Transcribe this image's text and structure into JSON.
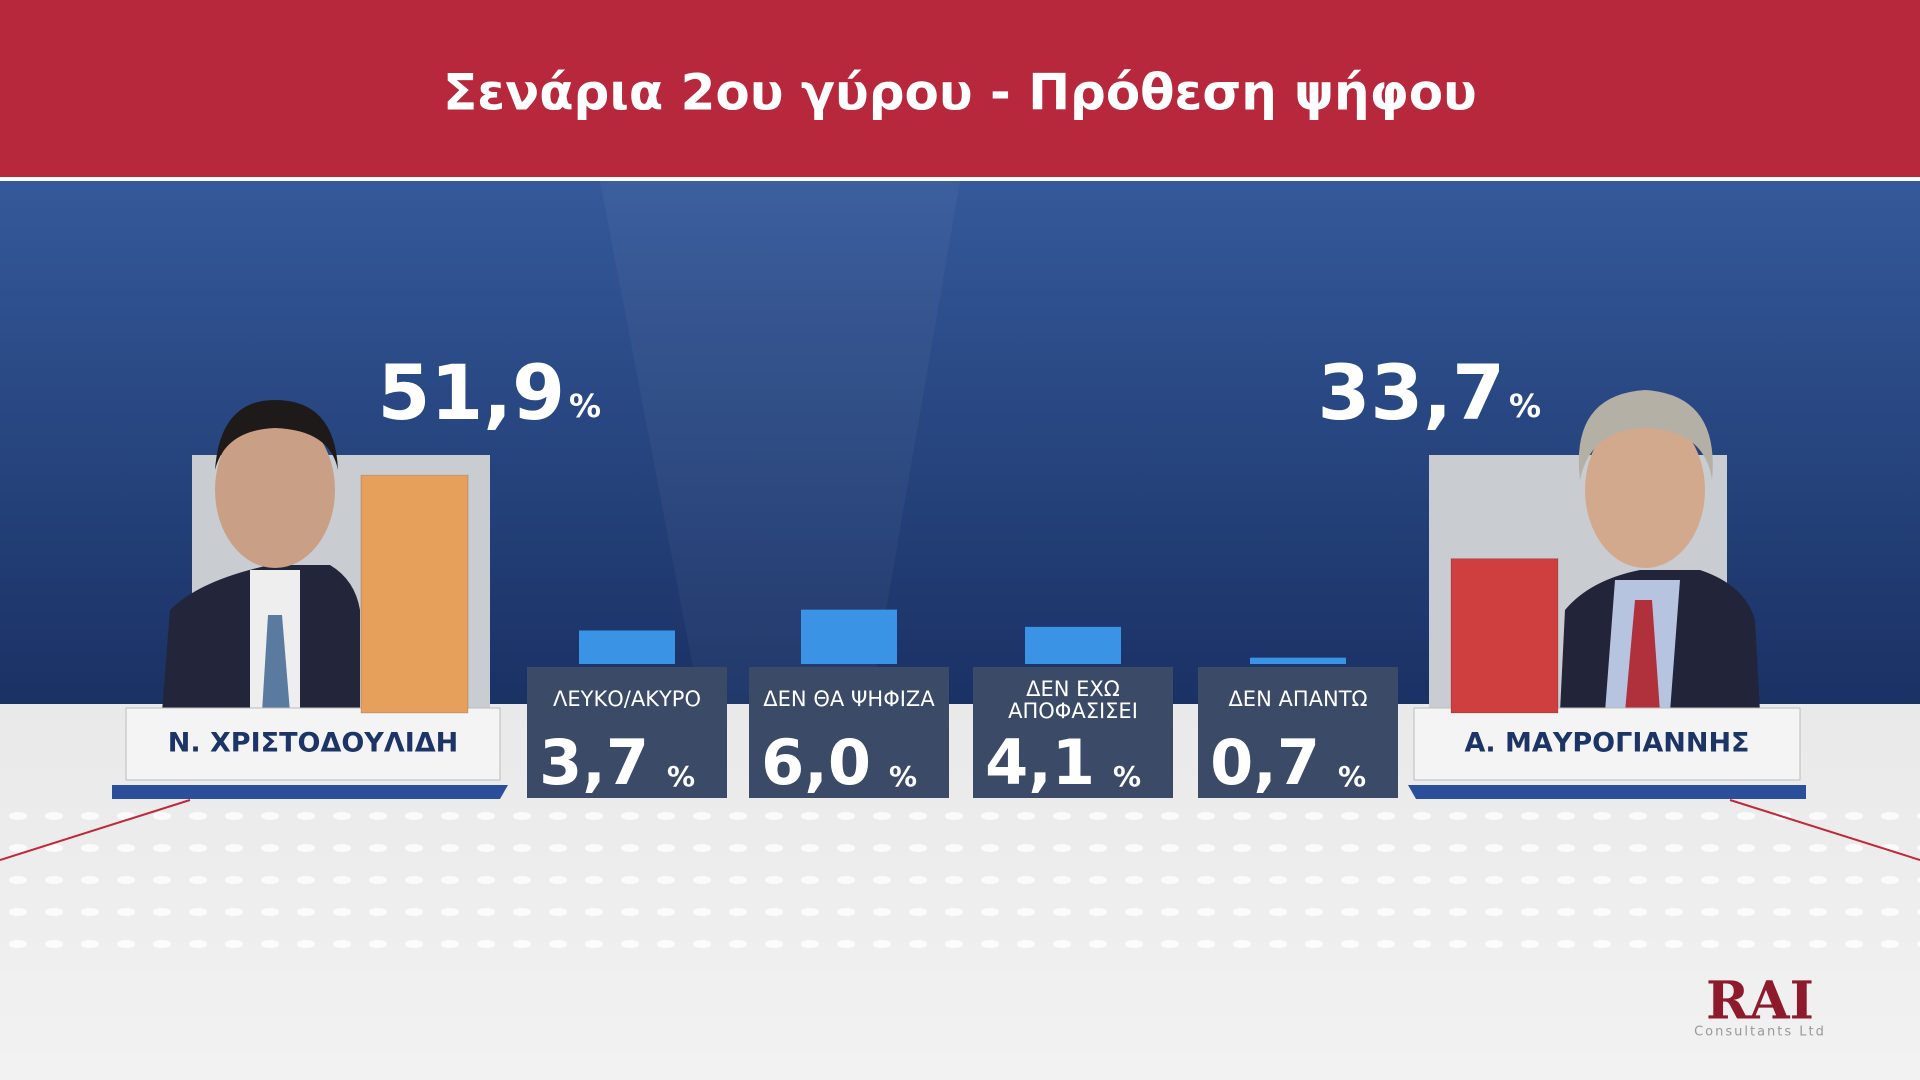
{
  "chart_data": {
    "type": "bar",
    "title": "Σενάρια 2ου γύρου - Πρόθεση ψήφου",
    "categories": [
      "Ν. ΧΡΙΣΤΟΔΟΥΛΙΔΗ",
      "ΛΕΥΚΟ/ΑΚΥΡΟ",
      "ΔΕΝ ΘΑ ΨΗΦΙΖΑ",
      "ΔΕΝ ΕΧΩ\nΑΠΟΦΑΣΙΣΕΙ",
      "ΔΕΝ ΑΠΑΝΤΩ",
      "Α. ΜΑΥΡΟΓΙΑΝΝΗΣ"
    ],
    "values": [
      51.9,
      3.7,
      6.0,
      4.1,
      0.7,
      33.7
    ],
    "value_labels": [
      "51,9",
      "3,7",
      "6,0",
      "4,1",
      "0,7",
      "33,7"
    ],
    "unit_label": "%",
    "colors": [
      "#e6a05c",
      "#3b93e6",
      "#3b93e6",
      "#3b93e6",
      "#3b93e6",
      "#cf3f3f"
    ],
    "source": {
      "logo": "RAI",
      "subtitle": "Consultants Ltd"
    }
  }
}
